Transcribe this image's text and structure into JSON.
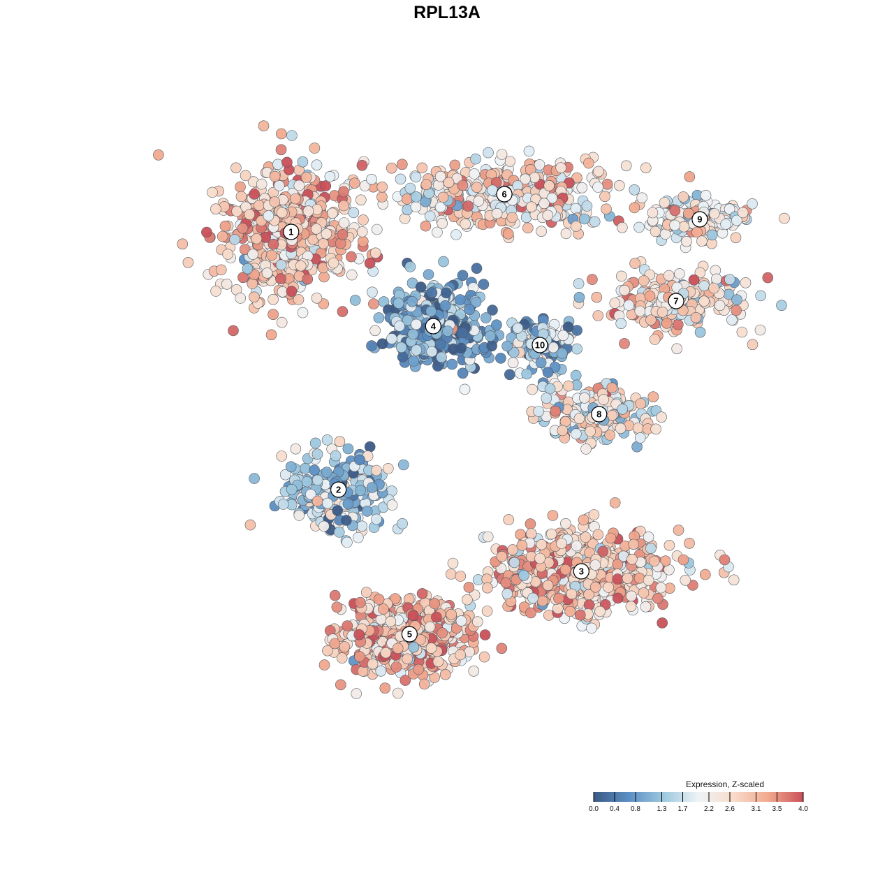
{
  "chart_data": {
    "type": "scatter",
    "title": "RPL13A",
    "xlabel": "",
    "ylabel": "",
    "colorbar": {
      "title": "Expression, Z-scaled",
      "ticks": [
        "0.0",
        "0.4",
        "0.8",
        "1.3",
        "1.7",
        "2.2",
        "2.6",
        "3.1",
        "3.5",
        "4.0"
      ],
      "range": [
        0.0,
        4.0
      ],
      "colors": [
        "#3b5a86",
        "#5b8fc4",
        "#9cc7de",
        "#eef3f7",
        "#f8dccb",
        "#f1a98e",
        "#c9505a"
      ],
      "placement": "bottom-right"
    },
    "grid": false,
    "axes_visible": false,
    "clusters": [
      {
        "label": "1",
        "x": -3.0,
        "y": 3.2,
        "mean_expr": 2.9,
        "spread_x": 1.1,
        "spread_y": 0.95,
        "n": 520
      },
      {
        "label": "6",
        "x": 0.6,
        "y": 3.8,
        "mean_expr": 2.5,
        "spread_x": 1.6,
        "spread_y": 0.45,
        "n": 420
      },
      {
        "label": "9",
        "x": 3.9,
        "y": 3.4,
        "mean_expr": 2.4,
        "spread_x": 0.75,
        "spread_y": 0.35,
        "n": 150
      },
      {
        "label": "7",
        "x": 3.5,
        "y": 2.1,
        "mean_expr": 2.5,
        "spread_x": 1.1,
        "spread_y": 0.45,
        "n": 230
      },
      {
        "label": "4",
        "x": -0.6,
        "y": 1.7,
        "mean_expr": 0.9,
        "spread_x": 0.75,
        "spread_y": 0.55,
        "n": 430
      },
      {
        "label": "10",
        "x": 1.2,
        "y": 1.4,
        "mean_expr": 1.3,
        "spread_x": 0.55,
        "spread_y": 0.4,
        "n": 130
      },
      {
        "label": "8",
        "x": 2.2,
        "y": 0.3,
        "mean_expr": 2.2,
        "spread_x": 0.85,
        "spread_y": 0.4,
        "n": 190
      },
      {
        "label": "2",
        "x": -2.2,
        "y": -0.9,
        "mean_expr": 1.5,
        "spread_x": 0.85,
        "spread_y": 0.5,
        "n": 260
      },
      {
        "label": "3",
        "x": 1.9,
        "y": -2.2,
        "mean_expr": 2.8,
        "spread_x": 1.3,
        "spread_y": 0.6,
        "n": 600
      },
      {
        "label": "5",
        "x": -1.0,
        "y": -3.2,
        "mean_expr": 3.0,
        "spread_x": 1.0,
        "spread_y": 0.55,
        "n": 520
      }
    ],
    "xlim": [
      -6.5,
      6.0
    ],
    "ylim": [
      -6.0,
      6.0
    ]
  }
}
